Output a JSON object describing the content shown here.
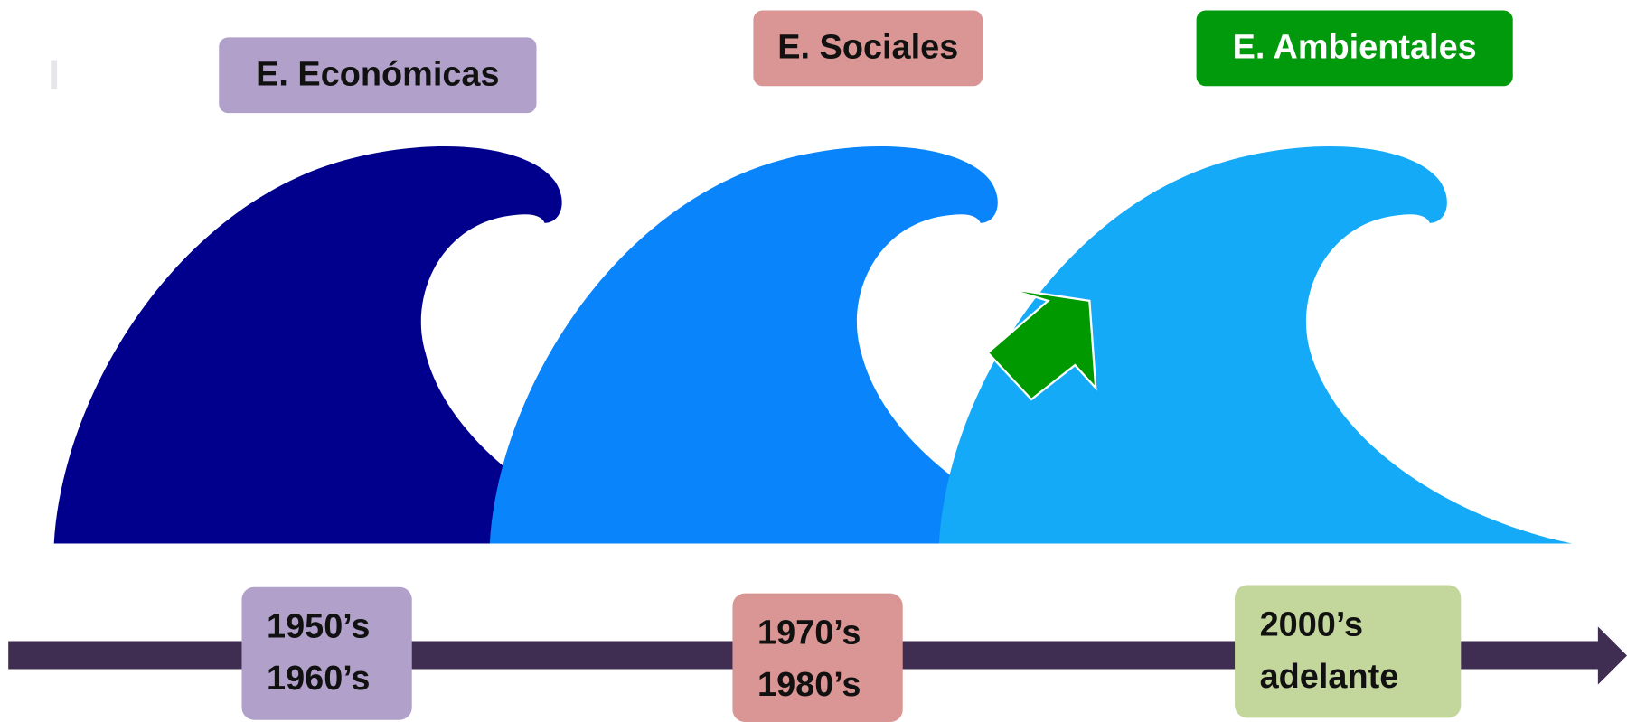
{
  "waves": [
    {
      "label": "E. Económicas",
      "period": [
        "1950’s",
        "1960’s"
      ]
    },
    {
      "label": "E. Sociales",
      "period": [
        "1970’s",
        "1980’s"
      ]
    },
    {
      "label": "E. Ambientales",
      "period": [
        "2000’s",
        "adelante"
      ]
    }
  ]
}
